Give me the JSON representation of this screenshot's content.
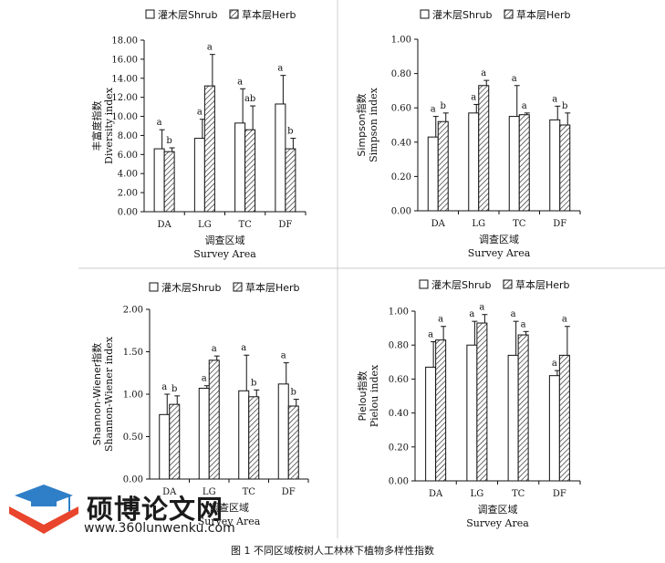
{
  "figure_caption": "图 1 不同区域桉树人工林林下植物多样性指数",
  "legend": {
    "shrub": "灌木层Shrub",
    "herb": "草本层Herb"
  },
  "axis_common": {
    "xlabel_cn": "调查区域",
    "xlabel_en": "Survey Area"
  },
  "watermark": {
    "name": "硕博论文网",
    "url": "www.360lunwenku.com"
  },
  "chart_data": [
    {
      "type": "bar",
      "ylabel_cn": "丰富度指数",
      "ylabel_en": "Diversity index",
      "categories": [
        "DA",
        "LG",
        "TC",
        "DF"
      ],
      "ylim": [
        0,
        18
      ],
      "yticks": [
        "0.00",
        "2.00",
        "4.00",
        "6.00",
        "8.00",
        "10.00",
        "12.00",
        "14.00",
        "16.00",
        "18.00"
      ],
      "series": [
        {
          "name": "灌木层Shrub",
          "values": [
            6.6,
            7.7,
            9.3,
            11.3
          ],
          "errors": [
            2.0,
            2.0,
            3.6,
            3.0
          ],
          "labels": [
            "a",
            "a",
            "a",
            "a"
          ]
        },
        {
          "name": "草本层Herb",
          "values": [
            6.3,
            13.2,
            8.6,
            6.6
          ],
          "errors": [
            0.4,
            3.3,
            2.5,
            1.1
          ],
          "labels": [
            "b",
            "a",
            "ab",
            "b"
          ]
        }
      ]
    },
    {
      "type": "bar",
      "ylabel_cn": "Simpson指数",
      "ylabel_en": "Simpson index",
      "categories": [
        "DA",
        "LG",
        "TC",
        "DF"
      ],
      "ylim": [
        0,
        1.0
      ],
      "yticks": [
        "0.00",
        "0.20",
        "0.40",
        "0.60",
        "0.80",
        "1.00"
      ],
      "series": [
        {
          "name": "灌木层Shrub",
          "values": [
            0.43,
            0.57,
            0.55,
            0.53
          ],
          "errors": [
            0.12,
            0.05,
            0.18,
            0.08
          ],
          "labels": [
            "a",
            "a",
            "a",
            "a"
          ]
        },
        {
          "name": "草本层Herb",
          "values": [
            0.52,
            0.73,
            0.56,
            0.5
          ],
          "errors": [
            0.05,
            0.03,
            0.01,
            0.07
          ],
          "labels": [
            "b",
            "a",
            "a",
            "b"
          ]
        }
      ]
    },
    {
      "type": "bar",
      "ylabel_cn": "Shannon-Wiener指数",
      "ylabel_en": "Shannon-Wiener index",
      "categories": [
        "DA",
        "LG",
        "TC",
        "DF"
      ],
      "ylim": [
        0,
        2.0
      ],
      "yticks": [
        "0.00",
        "0.50",
        "1.00",
        "1.50",
        "2.00"
      ],
      "series": [
        {
          "name": "灌木层Shrub",
          "values": [
            0.76,
            1.07,
            1.04,
            1.12
          ],
          "errors": [
            0.24,
            0.03,
            0.42,
            0.25
          ],
          "labels": [
            "a",
            "a",
            "a",
            "a"
          ]
        },
        {
          "name": "草本层Herb",
          "values": [
            0.88,
            1.4,
            0.97,
            0.86
          ],
          "errors": [
            0.1,
            0.05,
            0.08,
            0.08
          ],
          "labels": [
            "b",
            "a",
            "b",
            "b"
          ]
        }
      ]
    },
    {
      "type": "bar",
      "ylabel_cn": "Pielou指数",
      "ylabel_en": "Pielou index",
      "categories": [
        "DA",
        "LG",
        "TC",
        "DF"
      ],
      "ylim": [
        0,
        1.0
      ],
      "yticks": [
        "0.00",
        "0.20",
        "0.40",
        "0.60",
        "0.80",
        "1.00"
      ],
      "series": [
        {
          "name": "灌木层Shrub",
          "values": [
            0.67,
            0.8,
            0.74,
            0.62
          ],
          "errors": [
            0.15,
            0.14,
            0.2,
            0.03
          ],
          "labels": [
            "a",
            "a",
            "a",
            "a"
          ]
        },
        {
          "name": "草本层Herb",
          "values": [
            0.83,
            0.93,
            0.86,
            0.74
          ],
          "errors": [
            0.08,
            0.05,
            0.02,
            0.17
          ],
          "labels": [
            "a",
            "a",
            "a",
            "a"
          ]
        }
      ]
    }
  ]
}
